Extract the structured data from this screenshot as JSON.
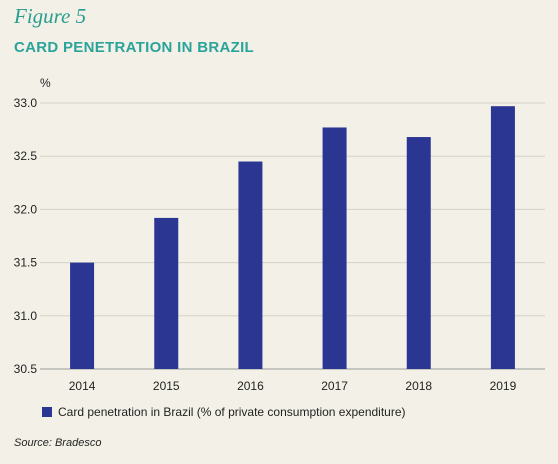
{
  "figure_label": "Figure 5",
  "chart_data": {
    "type": "bar",
    "title": "CARD PENETRATION IN BRAZIL",
    "unit_label": "%",
    "categories": [
      "2014",
      "2015",
      "2016",
      "2017",
      "2018",
      "2019"
    ],
    "series": [
      {
        "name": "Card penetration in Brazil (% of private consumption expenditure)",
        "values": [
          31.5,
          31.92,
          32.45,
          32.77,
          32.68,
          32.97
        ]
      }
    ],
    "ylim": [
      30.5,
      33.0
    ],
    "yticks": [
      "30.5",
      "31.0",
      "31.5",
      "32.0",
      "32.5",
      "33.0"
    ],
    "grid": true,
    "legend_position": "bottom-left",
    "bar_color": "#2b3592"
  },
  "source": "Source: Bradesco"
}
